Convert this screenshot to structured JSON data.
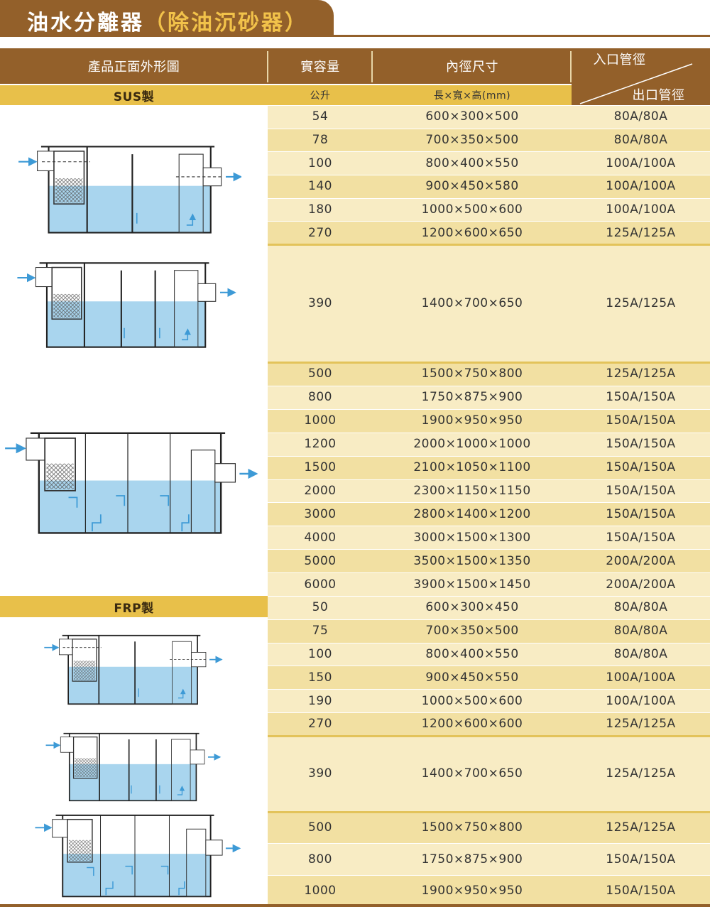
{
  "header": {
    "title": "油水分離器",
    "subtitle": "（除油沉砂器）"
  },
  "table": {
    "columns": [
      "產品正面外形圖",
      "實容量",
      "內徑尺寸",
      "入口管徑",
      "出口管徑"
    ],
    "units": [
      "公升",
      "長×寬×高(mm)"
    ],
    "sections": [
      {
        "label": "SUS製",
        "rows": [
          [
            "54",
            "600×300×500",
            "80A/80A"
          ],
          [
            "78",
            "700×350×500",
            "80A/80A"
          ],
          [
            "100",
            "800×400×550",
            "100A/100A"
          ],
          [
            "140",
            "900×450×580",
            "100A/100A"
          ],
          [
            "180",
            "1000×500×600",
            "100A/100A"
          ],
          [
            "270",
            "1200×600×650",
            "125A/125A"
          ],
          [
            "390",
            "1400×700×650",
            "125A/125A"
          ],
          [
            "500",
            "1500×750×800",
            "125A/125A"
          ],
          [
            "800",
            "1750×875×900",
            "150A/150A"
          ],
          [
            "1000",
            "1900×950×950",
            "150A/150A"
          ],
          [
            "1200",
            "2000×1000×1000",
            "150A/150A"
          ],
          [
            "1500",
            "2100×1050×1100",
            "150A/150A"
          ],
          [
            "2000",
            "2300×1150×1150",
            "150A/150A"
          ],
          [
            "3000",
            "2800×1400×1200",
            "150A/150A"
          ],
          [
            "4000",
            "3000×1500×1300",
            "150A/150A"
          ],
          [
            "5000",
            "3500×1500×1350",
            "200A/200A"
          ],
          [
            "6000",
            "3900×1500×1450",
            "200A/200A"
          ]
        ]
      },
      {
        "label": "FRP製",
        "rows": [
          [
            "50",
            "600×300×450",
            "80A/80A"
          ],
          [
            "75",
            "700×350×500",
            "80A/80A"
          ],
          [
            "100",
            "800×400×550",
            "80A/80A"
          ],
          [
            "150",
            "900×450×550",
            "100A/100A"
          ],
          [
            "190",
            "1000×500×600",
            "100A/100A"
          ],
          [
            "270",
            "1200×600×600",
            "125A/125A"
          ],
          [
            "390",
            "1400×700×650",
            "125A/125A"
          ],
          [
            "500",
            "1500×750×800",
            "125A/125A"
          ],
          [
            "800",
            "1750×875×900",
            "150A/150A"
          ],
          [
            "1000",
            "1900×950×950",
            "150A/150A"
          ]
        ]
      }
    ]
  }
}
